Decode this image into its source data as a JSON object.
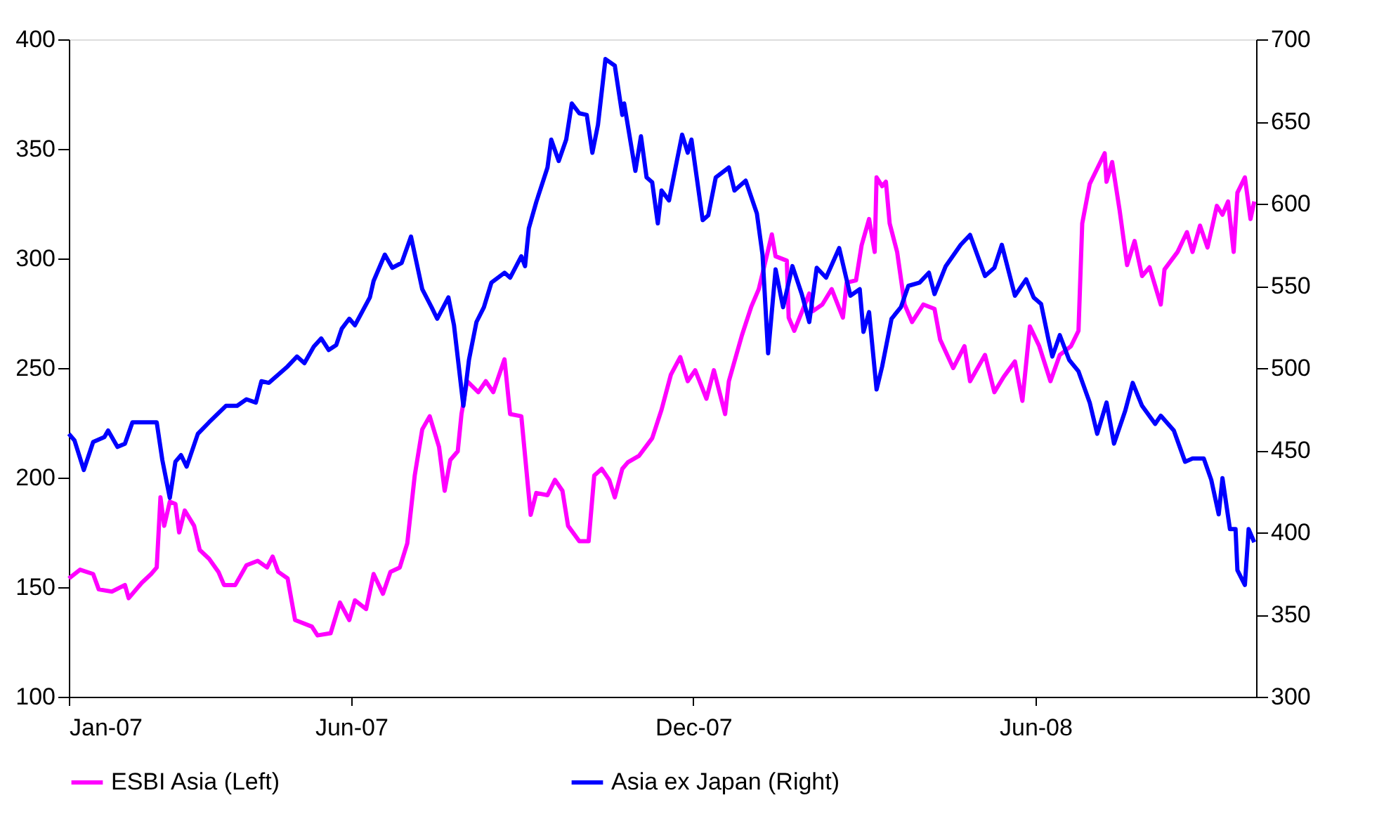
{
  "chart_data": {
    "type": "line",
    "xlim": [
      "2007-01-01",
      "2008-09-27"
    ],
    "xticks": [
      {
        "value": "2007-01-01",
        "label": "Jan-07"
      },
      {
        "value": "2007-06-01",
        "label": "Jun-07"
      },
      {
        "value": "2007-12-01",
        "label": "Dec-07"
      },
      {
        "value": "2008-06-01",
        "label": "Jun-08"
      }
    ],
    "ylim": [
      100,
      400
    ],
    "yticks": [
      100,
      150,
      200,
      250,
      300,
      350,
      400
    ],
    "y2lim": [
      300,
      700
    ],
    "y2ticks": [
      300,
      350,
      400,
      450,
      500,
      550,
      600,
      650,
      700
    ],
    "grid": false,
    "legend": "bottom",
    "marker": "none",
    "line_style": "solid",
    "series": [
      {
        "name": "ESBI Asia (Left)",
        "color": "#ff00ff",
        "axis": "y",
        "x": [
          "2007-01-01",
          "2007-01-07",
          "2007-01-14",
          "2007-01-17",
          "2007-01-24",
          "2007-01-31",
          "2007-02-02",
          "2007-02-09",
          "2007-02-14",
          "2007-02-17",
          "2007-02-19",
          "2007-02-21",
          "2007-02-24",
          "2007-02-27",
          "2007-03-01",
          "2007-03-04",
          "2007-03-09",
          "2007-03-12",
          "2007-03-17",
          "2007-03-22",
          "2007-03-25",
          "2007-03-31",
          "2007-04-06",
          "2007-04-12",
          "2007-04-17",
          "2007-04-20",
          "2007-04-23",
          "2007-04-28",
          "2007-05-02",
          "2007-05-11",
          "2007-05-14",
          "2007-05-21",
          "2007-05-26",
          "2007-05-31",
          "2007-06-03",
          "2007-06-09",
          "2007-06-13",
          "2007-06-18",
          "2007-06-22",
          "2007-06-27",
          "2007-07-01",
          "2007-07-05",
          "2007-07-09",
          "2007-07-13",
          "2007-07-18",
          "2007-07-21",
          "2007-07-24",
          "2007-07-28",
          "2007-07-30",
          "2007-08-02",
          "2007-08-08",
          "2007-08-12",
          "2007-08-16",
          "2007-08-22",
          "2007-08-25",
          "2007-08-31",
          "2007-09-05",
          "2007-09-08",
          "2007-09-14",
          "2007-09-18",
          "2007-09-22",
          "2007-09-25",
          "2007-10-01",
          "2007-10-06",
          "2007-10-09",
          "2007-10-13",
          "2007-10-17",
          "2007-10-20",
          "2007-10-24",
          "2007-10-27",
          "2007-11-02",
          "2007-11-09",
          "2007-11-14",
          "2007-11-19",
          "2007-11-24",
          "2007-11-28",
          "2007-12-02",
          "2007-12-08",
          "2007-12-12",
          "2007-12-18",
          "2007-12-20",
          "2007-12-27",
          "2008-01-01",
          "2008-01-05",
          "2008-01-12",
          "2008-01-14",
          "2008-01-20",
          "2008-01-21",
          "2008-01-24",
          "2008-02-01",
          "2008-02-03",
          "2008-02-08",
          "2008-02-13",
          "2008-02-19",
          "2008-02-21",
          "2008-02-26",
          "2008-02-29",
          "2008-03-04",
          "2008-03-07",
          "2008-03-08",
          "2008-03-11",
          "2008-03-13",
          "2008-03-15",
          "2008-03-19",
          "2008-03-23",
          "2008-03-27",
          "2008-04-02",
          "2008-04-08",
          "2008-04-11",
          "2008-04-18",
          "2008-04-24",
          "2008-04-27",
          "2008-05-05",
          "2008-05-10",
          "2008-05-15",
          "2008-05-21",
          "2008-05-25",
          "2008-05-29",
          "2008-06-03",
          "2008-06-09",
          "2008-06-14",
          "2008-06-20",
          "2008-06-24",
          "2008-06-26",
          "2008-06-30",
          "2008-07-08",
          "2008-07-09",
          "2008-07-12",
          "2008-07-16",
          "2008-07-20",
          "2008-07-24",
          "2008-07-28",
          "2008-08-01",
          "2008-08-07",
          "2008-08-09",
          "2008-08-16",
          "2008-08-21",
          "2008-08-24",
          "2008-08-28",
          "2008-09-01",
          "2008-09-06",
          "2008-09-09",
          "2008-09-12",
          "2008-09-15",
          "2008-09-17",
          "2008-09-21",
          "2008-09-24",
          "2008-09-26"
        ],
        "values": [
          154,
          158,
          156,
          149,
          148,
          151,
          145,
          152,
          156,
          159,
          191,
          178,
          189,
          188,
          175,
          185,
          178,
          167,
          163,
          157,
          151,
          151,
          160,
          162,
          159,
          164,
          157,
          154,
          135,
          132,
          128,
          129,
          143,
          135,
          144,
          140,
          156,
          147,
          157,
          159,
          170,
          201,
          222,
          228,
          214,
          194,
          208,
          212,
          229,
          244,
          239,
          244,
          239,
          254,
          229,
          228,
          183,
          193,
          192,
          199,
          194,
          178,
          171,
          171,
          201,
          204,
          199,
          191,
          204,
          207,
          210,
          218,
          231,
          247,
          255,
          244,
          249,
          236,
          249,
          229,
          244,
          265,
          278,
          286,
          311,
          301,
          299,
          273,
          267,
          284,
          276,
          279,
          286,
          273,
          289,
          290,
          306,
          318,
          303,
          337,
          333,
          335,
          316,
          303,
          279,
          271,
          279,
          277,
          263,
          250,
          260,
          244,
          256,
          239,
          246,
          253,
          235,
          269,
          260,
          244,
          256,
          260,
          267,
          316,
          334,
          348,
          335,
          344,
          322,
          297,
          308,
          292,
          296,
          279,
          295,
          303,
          312,
          303,
          315,
          305,
          324,
          320,
          326,
          303,
          330,
          337,
          318,
          326
        ]
      },
      {
        "name": "Asia ex Japan (Right)",
        "color": "#0000ff",
        "axis": "y2",
        "x": [
          "2007-01-01",
          "2007-01-04",
          "2007-01-09",
          "2007-01-14",
          "2007-01-20",
          "2007-01-22",
          "2007-01-27",
          "2007-01-31",
          "2007-02-04",
          "2007-02-13",
          "2007-02-17",
          "2007-02-20",
          "2007-02-24",
          "2007-02-27",
          "2007-03-02",
          "2007-03-05",
          "2007-03-11",
          "2007-03-17",
          "2007-03-26",
          "2007-04-01",
          "2007-04-06",
          "2007-04-11",
          "2007-04-14",
          "2007-04-18",
          "2007-04-25",
          "2007-04-28",
          "2007-05-03",
          "2007-05-07",
          "2007-05-12",
          "2007-05-16",
          "2007-05-20",
          "2007-05-24",
          "2007-05-27",
          "2007-05-31",
          "2007-06-03",
          "2007-06-11",
          "2007-06-13",
          "2007-06-19",
          "2007-06-23",
          "2007-06-28",
          "2007-07-03",
          "2007-07-09",
          "2007-07-14",
          "2007-07-17",
          "2007-07-23",
          "2007-07-26",
          "2007-07-31",
          "2007-08-03",
          "2007-08-07",
          "2007-08-11",
          "2007-08-15",
          "2007-08-22",
          "2007-08-25",
          "2007-08-31",
          "2007-09-02",
          "2007-09-04",
          "2007-09-08",
          "2007-09-14",
          "2007-09-16",
          "2007-09-20",
          "2007-09-24",
          "2007-09-27",
          "2007-10-01",
          "2007-10-05",
          "2007-10-08",
          "2007-10-11",
          "2007-10-15",
          "2007-10-20",
          "2007-10-24",
          "2007-10-25",
          "2007-10-31",
          "2007-11-03",
          "2007-11-06",
          "2007-11-09",
          "2007-11-12",
          "2007-11-14",
          "2007-11-18",
          "2007-11-22",
          "2007-11-25",
          "2007-11-28",
          "2007-11-30",
          "2007-12-06",
          "2007-12-09",
          "2007-12-13",
          "2007-12-20",
          "2007-12-23",
          "2007-12-29",
          "2008-01-04",
          "2008-01-07",
          "2008-01-10",
          "2008-01-14",
          "2008-01-18",
          "2008-01-23",
          "2008-01-28",
          "2008-02-01",
          "2008-02-05",
          "2008-02-10",
          "2008-02-17",
          "2008-02-23",
          "2008-02-28",
          "2008-03-01",
          "2008-03-04",
          "2008-03-08",
          "2008-03-11",
          "2008-03-16",
          "2008-03-21",
          "2008-03-25",
          "2008-03-31",
          "2008-04-05",
          "2008-04-08",
          "2008-04-14",
          "2008-04-22",
          "2008-04-27",
          "2008-05-05",
          "2008-05-10",
          "2008-05-14",
          "2008-05-21",
          "2008-05-27",
          "2008-05-31",
          "2008-06-04",
          "2008-06-08",
          "2008-06-10",
          "2008-06-14",
          "2008-06-19",
          "2008-06-24",
          "2008-06-30",
          "2008-07-04",
          "2008-07-09",
          "2008-07-13",
          "2008-07-19",
          "2008-07-23",
          "2008-07-28",
          "2008-08-04",
          "2008-08-07",
          "2008-08-14",
          "2008-08-20",
          "2008-08-24",
          "2008-08-30",
          "2008-09-03",
          "2008-09-07",
          "2008-09-09",
          "2008-09-13",
          "2008-09-16",
          "2008-09-17",
          "2008-09-21",
          "2008-09-23",
          "2008-09-26"
        ],
        "values": [
          460,
          456,
          438,
          455,
          458,
          462,
          452,
          454,
          467,
          467,
          467,
          444,
          421,
          443,
          447,
          440,
          460,
          467,
          477,
          477,
          481,
          479,
          492,
          491,
          498,
          501,
          507,
          503,
          513,
          518,
          511,
          514,
          524,
          530,
          526,
          543,
          553,
          569,
          561,
          564,
          580,
          548,
          537,
          530,
          543,
          526,
          477,
          505,
          528,
          537,
          552,
          558,
          555,
          568,
          562,
          585,
          601,
          622,
          639,
          626,
          639,
          661,
          655,
          654,
          631,
          648,
          688,
          684,
          654,
          661,
          620,
          641,
          616,
          613,
          588,
          608,
          602,
          625,
          642,
          631,
          639,
          590,
          593,
          616,
          622,
          608,
          614,
          594,
          569,
          509,
          560,
          537,
          562,
          545,
          528,
          561,
          555,
          573,
          544,
          548,
          522,
          534,
          487,
          501,
          530,
          537,
          550,
          552,
          558,
          545,
          562,
          575,
          581,
          556,
          561,
          575,
          544,
          554,
          543,
          539,
          517,
          507,
          520,
          505,
          498,
          479,
          460,
          479,
          454,
          474,
          491,
          477,
          466,
          471,
          462,
          443,
          445,
          445,
          432,
          411,
          433,
          402,
          402,
          377,
          368,
          402,
          394
        ]
      }
    ]
  }
}
